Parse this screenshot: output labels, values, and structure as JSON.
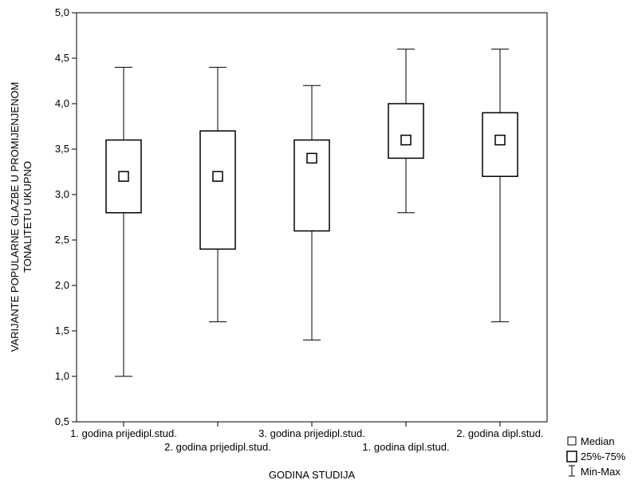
{
  "chart_data": {
    "type": "boxplot",
    "xlabel": "GODINA STUDIJA",
    "ylabel_lines": [
      "VARIJANTE POPULARNE GLAZBE U PROMIJENJENOM",
      "TONALITETU UKUPNO"
    ],
    "ylim": [
      0.5,
      5.0
    ],
    "y_ticks": [
      {
        "value": 0.5,
        "label": "0,5"
      },
      {
        "value": 1.0,
        "label": "1,0"
      },
      {
        "value": 1.5,
        "label": "1,5"
      },
      {
        "value": 2.0,
        "label": "2,0"
      },
      {
        "value": 2.5,
        "label": "2,5"
      },
      {
        "value": 3.0,
        "label": "3,0"
      },
      {
        "value": 3.5,
        "label": "3,5"
      },
      {
        "value": 4.0,
        "label": "4,0"
      },
      {
        "value": 4.5,
        "label": "4,5"
      },
      {
        "value": 5.0,
        "label": "5,0"
      }
    ],
    "categories": [
      "1. godina prijedipl.stud.",
      "2. godina prijedipl.stud.",
      "3. godina prijedipl.stud.",
      "1. godina dipl.stud.",
      "2. godina dipl.stud."
    ],
    "boxes": [
      {
        "min": 1.0,
        "q1": 2.8,
        "median": 3.2,
        "q3": 3.6,
        "max": 4.4
      },
      {
        "min": 1.6,
        "q1": 2.4,
        "median": 3.2,
        "q3": 3.7,
        "max": 4.4
      },
      {
        "min": 1.4,
        "q1": 2.6,
        "median": 3.4,
        "q3": 3.6,
        "max": 4.2
      },
      {
        "min": 2.8,
        "q1": 3.4,
        "median": 3.6,
        "q3": 4.0,
        "max": 4.6
      },
      {
        "min": 1.6,
        "q1": 3.2,
        "median": 3.6,
        "q3": 3.9,
        "max": 4.6
      }
    ],
    "legend": {
      "position": "bottom-right",
      "median": "Median",
      "box": "25%-75%",
      "whisker": "Min-Max"
    },
    "grid": false
  }
}
